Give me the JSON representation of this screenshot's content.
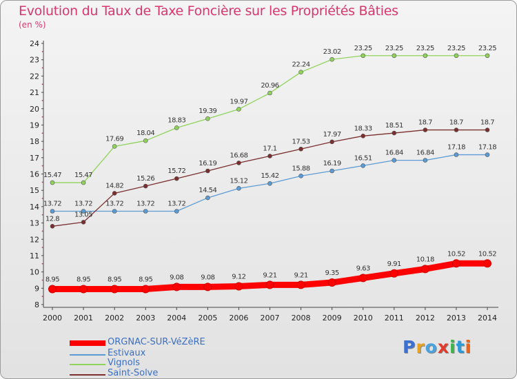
{
  "title": "Evolution du Taux de Taxe Foncière sur les Propriétés Bâties",
  "unit": "(en %)",
  "logo": {
    "text": "Proxiti",
    "colors": [
      "#3b6fd1",
      "#e8a21e",
      "#4aa3df",
      "#e23a2a",
      "#3db34a",
      "#2a9ad9",
      "#e8641e"
    ]
  },
  "chart_data": {
    "type": "line",
    "x": [
      "2000",
      "2001",
      "2002",
      "2003",
      "2004",
      "2005",
      "2006",
      "2007",
      "2008",
      "2009",
      "2010",
      "2011",
      "2012",
      "2013",
      "2014"
    ],
    "ylim": [
      8,
      24
    ],
    "yticks": [
      8,
      9,
      10,
      11,
      12,
      13,
      14,
      15,
      16,
      17,
      18,
      19,
      20,
      21,
      22,
      23,
      24
    ],
    "grid": false,
    "legend_position": "bottom-left",
    "series": [
      {
        "name": "ORGNAC-SUR-VéZèRE",
        "color": "#ff0000",
        "values": [
          8.95,
          8.95,
          8.95,
          8.95,
          9.08,
          9.08,
          9.12,
          9.21,
          9.21,
          9.35,
          9.63,
          9.91,
          10.18,
          10.52,
          10.52
        ],
        "labels": [
          "8.95",
          "8.95",
          "8.95",
          "8.95",
          "9.08",
          "9.08",
          "9.12",
          "9.21",
          "9.21",
          "9.35",
          "9.63",
          "9.91",
          "10.18",
          "10.52",
          "10.52"
        ]
      },
      {
        "name": "Estivaux",
        "color": "#5b9bd5",
        "values": [
          13.72,
          13.72,
          13.72,
          13.72,
          13.72,
          14.54,
          15.12,
          15.42,
          15.88,
          16.19,
          16.51,
          16.84,
          16.84,
          17.18,
          17.18
        ],
        "labels": [
          "13.72",
          "13.72",
          "13.72",
          "13.72",
          "13.72",
          "14.54",
          "15.12",
          "15.42",
          "15.88",
          "16.19",
          "16.51",
          "16.84",
          "16.84",
          "17.18",
          "17.18"
        ]
      },
      {
        "name": "Vignols",
        "color": "#8fd35a",
        "values": [
          15.47,
          15.47,
          17.69,
          18.04,
          18.83,
          19.39,
          19.97,
          20.96,
          22.24,
          23.02,
          23.25,
          23.25,
          23.25,
          23.25,
          23.25
        ],
        "labels": [
          "15.47",
          "15.47",
          "17.69",
          "18.04",
          "18.83",
          "19.39",
          "19.97",
          "20.96",
          "22.24",
          "23.02",
          "23.25",
          "23.25",
          "23.25",
          "23.25",
          "23.25"
        ]
      },
      {
        "name": "Saint-Solve",
        "color": "#7a2e2e",
        "values": [
          12.8,
          13.05,
          14.82,
          15.26,
          15.72,
          16.19,
          16.68,
          17.1,
          17.53,
          17.97,
          18.33,
          18.51,
          18.7,
          18.7,
          18.7
        ],
        "labels": [
          "12.8",
          "13.05",
          "14.82",
          "15.26",
          "15.72",
          "16.19",
          "16.68",
          "17.1",
          "17.53",
          "17.97",
          "18.33",
          "18.51",
          "18.7",
          "18.7",
          "18.7"
        ]
      }
    ]
  }
}
